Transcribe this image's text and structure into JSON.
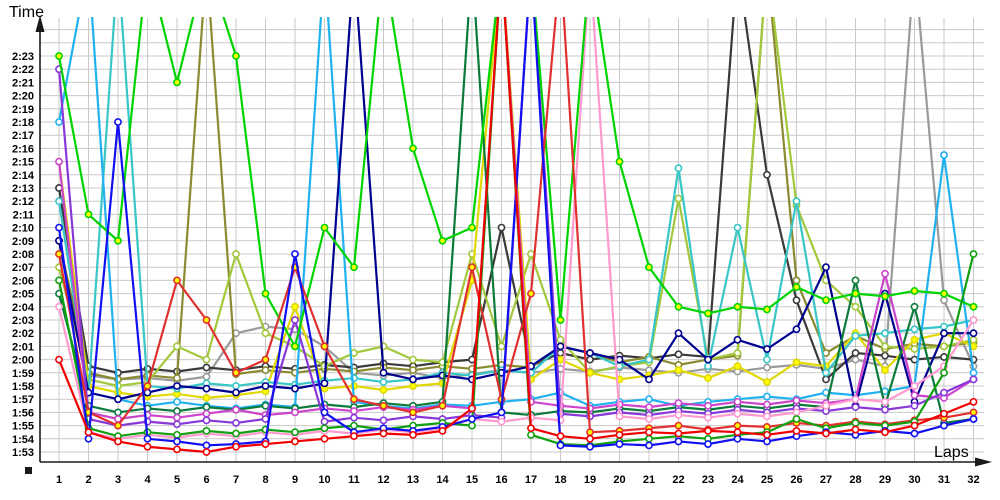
{
  "chart_data": {
    "type": "line",
    "title": "",
    "xlabel": "Laps",
    "ylabel": "Time",
    "x_axis": {
      "label": "Laps",
      "ticks": [
        1,
        2,
        3,
        4,
        5,
        6,
        7,
        8,
        9,
        10,
        11,
        12,
        13,
        14,
        15,
        16,
        17,
        18,
        19,
        20,
        21,
        22,
        23,
        24,
        25,
        26,
        27,
        28,
        29,
        30,
        31,
        32
      ]
    },
    "y_axis": {
      "label": "Time",
      "tick_labels": [
        "1:53",
        "1:54",
        "1:55",
        "1:56",
        "1:57",
        "1:58",
        "1:59",
        "2:00",
        "2:01",
        "2:02",
        "2:03",
        "2:04",
        "2:05",
        "2:06",
        "2:07",
        "2:08",
        "2:09",
        "2:10",
        "2:11",
        "2:12",
        "2:13",
        "2:14",
        "2:15",
        "2:16",
        "2:17",
        "2:18",
        "2:19",
        "2:20",
        "2:21",
        "2:22",
        "2:23"
      ],
      "min_seconds": 113,
      "max_seconds": 143,
      "offscale_above_seconds": 146
    },
    "grid": true,
    "legend_position": "none",
    "marker_style": "open-circle",
    "series": [
      {
        "name": "gray",
        "color": "#9a9a9a",
        "marker_fill": "#ffffff",
        "values": [
          133,
          118.8,
          118.5,
          118.6,
          118.4,
          118.7,
          122,
          122.5,
          122.3,
          121,
          119,
          118.8,
          119,
          118.6,
          118.9,
          119.2,
          119,
          119.3,
          119.1,
          119.4,
          119.2,
          119,
          119.3,
          119.1,
          119.4,
          119.6,
          119.3,
          120,
          119.5,
          150,
          124.5,
          119.5
        ]
      },
      {
        "name": "black",
        "color": "#3a3a3a",
        "marker_fill": "#ffffff",
        "values": [
          133,
          119.5,
          119,
          119.3,
          119.1,
          119.4,
          119.2,
          119.5,
          119.3,
          119.6,
          119.4,
          119.7,
          119.5,
          119.8,
          120,
          130,
          119.5,
          120.5,
          120,
          120.3,
          120.1,
          120.4,
          120.2,
          150,
          134,
          124.5,
          118.5,
          120.5,
          120.3,
          120,
          120.2,
          120
        ]
      },
      {
        "name": "olive",
        "color": "#8a8a30",
        "marker_fill": "#ffffff",
        "values": [
          129,
          119,
          118.5,
          118.8,
          118.6,
          150,
          118.9,
          119.2,
          119,
          119.3,
          119.1,
          119.4,
          119.2,
          119.5,
          119.3,
          119.6,
          119.4,
          121,
          120.5,
          119.8,
          120.2,
          119.6,
          120,
          120.3,
          150,
          126,
          120.5,
          121.8,
          120.8,
          121.2,
          121,
          121.3
        ]
      },
      {
        "name": "yellowgreen",
        "color": "#a2c83c",
        "marker_fill": "#ffffff",
        "values": [
          127,
          118.5,
          118,
          118.3,
          121,
          120,
          128,
          122,
          121,
          119.5,
          120.5,
          121,
          120,
          119.8,
          128,
          121,
          128,
          121.5,
          119,
          119.5,
          119.8,
          132.2,
          120,
          120.5,
          150,
          131.7,
          126,
          124,
          121,
          120.8,
          121,
          121.5
        ]
      },
      {
        "name": "yellow",
        "color": "#e0d800",
        "marker_fill": "#ffff00",
        "values": [
          135,
          118,
          117.5,
          117.2,
          117.4,
          117.1,
          117.3,
          117.6,
          124,
          117.8,
          118,
          117.7,
          118,
          118.2,
          126,
          150,
          118.5,
          120,
          119,
          118.5,
          118.8,
          119.2,
          118.6,
          119.5,
          118.3,
          119.8,
          119.5,
          122,
          119.2,
          121.5,
          122,
          121
        ]
      },
      {
        "name": "turquoise",
        "color": "#38c6c6",
        "marker_fill": "#ffffff",
        "values": [
          132,
          117.5,
          150,
          118,
          117.8,
          118.2,
          118,
          118.3,
          118.1,
          118.4,
          118.6,
          118.3,
          118.5,
          119,
          118.8,
          119.2,
          119,
          121,
          120.5,
          119.5,
          120,
          134.5,
          119.5,
          130,
          120,
          132,
          119,
          121.8,
          122,
          122.3,
          122.5,
          123
        ]
      },
      {
        "name": "deepskyblue",
        "color": "#20b2f0",
        "marker_fill": "#ffffff",
        "values": [
          138,
          150,
          117,
          116.5,
          116.8,
          116.5,
          116.3,
          116.6,
          116.4,
          150,
          116.8,
          116.5,
          116.3,
          116.6,
          116.5,
          116.8,
          117,
          117.5,
          116.5,
          116.8,
          117,
          116.5,
          116.8,
          117,
          117.2,
          117,
          117.5,
          117.3,
          117.6,
          118,
          135.5,
          119
        ]
      },
      {
        "name": "navy",
        "color": "#000090",
        "marker_fill": "#ffffff",
        "values": [
          129,
          117.5,
          117,
          117.5,
          118,
          117.8,
          117.5,
          118,
          117.8,
          118.2,
          150,
          119,
          118.5,
          118.8,
          118.5,
          119,
          119.5,
          121,
          120.5,
          120,
          118.5,
          122,
          120,
          121.5,
          120.8,
          122.3,
          127,
          116.5,
          125,
          116.8,
          122,
          122
        ]
      },
      {
        "name": "darkgreen",
        "color": "#0b7a3b",
        "marker_fill": "#ffffff",
        "values": [
          125,
          116.5,
          116,
          116.3,
          116.1,
          116.4,
          116.2,
          116.5,
          116.3,
          116.6,
          116.4,
          116.7,
          116.5,
          116.8,
          150,
          116,
          115.8,
          116.1,
          116,
          116.3,
          116.1,
          116.4,
          116.2,
          116.5,
          116.3,
          116.6,
          116.4,
          126,
          116.5,
          124,
          115.2,
          115.5
        ]
      },
      {
        "name": "magenta",
        "color": "#cc44cc",
        "marker_fill": "#ffffff",
        "values": [
          135,
          116,
          115.5,
          115.8,
          115.6,
          115.9,
          116.2,
          115.8,
          116,
          116.3,
          116.1,
          116.4,
          116.2,
          116.5,
          116.3,
          150,
          116.8,
          116.5,
          116.3,
          116.6,
          116.4,
          116.7,
          116.5,
          116.8,
          116.6,
          116.9,
          116.7,
          117,
          126.5,
          117.3,
          117.1,
          118.5
        ]
      },
      {
        "name": "violet",
        "color": "#8838d8",
        "marker_fill": "#ffffff",
        "values": [
          142,
          115.5,
          115,
          115.3,
          115.1,
          115.4,
          115.2,
          115.5,
          123,
          115.3,
          115.6,
          115.4,
          115.7,
          115.5,
          115.8,
          115.6,
          150,
          115.9,
          115.7,
          116,
          115.8,
          116.1,
          115.9,
          116.2,
          116,
          116.3,
          116.1,
          116.4,
          116.2,
          116.5,
          117.5,
          118.5
        ]
      },
      {
        "name": "pink",
        "color": "#ff9ad0",
        "marker_fill": "#ffffff",
        "values": [
          124,
          114.5,
          114,
          114.3,
          114.1,
          114.4,
          114.2,
          114.5,
          114.3,
          114.6,
          114.4,
          114.7,
          114.5,
          114.8,
          115.5,
          115.3,
          115.6,
          115.4,
          150,
          115.7,
          115.5,
          115.8,
          115.6,
          115.9,
          115.7,
          116,
          116.5,
          117,
          116.8,
          118,
          119.5,
          123
        ]
      },
      {
        "name": "brightgreen",
        "color": "#00d400",
        "marker_fill": "#ffff00",
        "values": [
          143,
          131,
          129,
          150,
          141,
          150,
          143,
          125,
          121,
          130,
          127,
          150,
          136,
          129,
          130,
          150,
          150,
          123,
          150,
          135,
          127,
          124,
          123.5,
          124,
          123.8,
          125.5,
          124.5,
          125,
          124.8,
          125.2,
          125,
          124
        ]
      },
      {
        "name": "red2",
        "color": "#e03030",
        "marker_fill": "#ffff00",
        "values": [
          128,
          116,
          115,
          118,
          126,
          123,
          119,
          120,
          127,
          121,
          117,
          116.5,
          116,
          116.5,
          127,
          117,
          125,
          150,
          114.5,
          114.6,
          114.8,
          115,
          114.7,
          115,
          114.9,
          115.2,
          115,
          115.3,
          115.1,
          115.4,
          115.6,
          116
        ]
      },
      {
        "name": "green",
        "color": "#10a010",
        "marker_fill": "#ffffff",
        "values": [
          126,
          114.8,
          114.2,
          114.5,
          114.3,
          114.6,
          114.4,
          114.7,
          114.5,
          114.8,
          115,
          114.7,
          115,
          115.2,
          115,
          150,
          114.3,
          113.6,
          113.5,
          113.8,
          114,
          114.2,
          114,
          114.3,
          114.5,
          115.5,
          114.8,
          115.2,
          115,
          115.3,
          119,
          128
        ]
      },
      {
        "name": "blue",
        "color": "#1010f0",
        "marker_fill": "#ffffff",
        "values": [
          130,
          114,
          138,
          114,
          113.8,
          113.5,
          113.6,
          113.8,
          128,
          116,
          114.5,
          114.8,
          114.6,
          114.9,
          115.5,
          116,
          150,
          113.5,
          113.4,
          113.6,
          113.5,
          113.8,
          113.6,
          114,
          113.8,
          114.2,
          114.5,
          114.3,
          114.6,
          114.4,
          115,
          115.5
        ]
      },
      {
        "name": "red",
        "color": "#f00000",
        "marker_fill": "#ffffff",
        "values": [
          120,
          114.5,
          113.8,
          113.4,
          113.2,
          113,
          113.4,
          113.6,
          113.8,
          114,
          114.2,
          114.4,
          114.3,
          114.6,
          116.3,
          150,
          114.8,
          114.2,
          114,
          114.3,
          114.5,
          114.4,
          114.6,
          114.5,
          114.3,
          114.6,
          114.4,
          114.7,
          114.5,
          115,
          115.9,
          116.8
        ]
      }
    ]
  }
}
